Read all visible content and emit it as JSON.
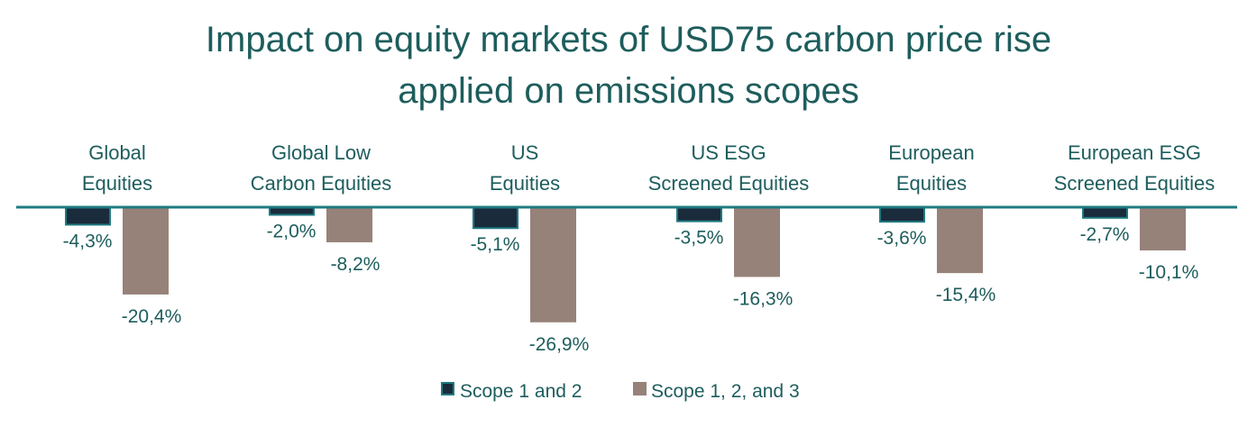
{
  "chart_data": {
    "type": "bar",
    "title_lines": [
      "Impact on equity markets of USD75 carbon price rise",
      "applied on emissions scopes"
    ],
    "categories": [
      [
        "Global",
        "Equities"
      ],
      [
        "Global Low",
        "Carbon Equities"
      ],
      [
        "US",
        "Equities"
      ],
      [
        "US ESG",
        "Screened Equities"
      ],
      [
        "European",
        "Equities"
      ],
      [
        "European ESG",
        "Screened Equities"
      ]
    ],
    "series": [
      {
        "name": "Scope 1 and 2",
        "values": [
          -4.3,
          -2.0,
          -5.1,
          -3.5,
          -3.6,
          -2.7
        ],
        "labels": [
          "-4,3%",
          "-2,0%",
          "-5,1%",
          "-3,5%",
          "-3,6%",
          "-2,7%"
        ],
        "color": "#1a2b3c",
        "stroke": "#1e7b80"
      },
      {
        "name": "Scope 1, 2, and 3",
        "values": [
          -20.4,
          -8.2,
          -26.9,
          -16.3,
          -15.4,
          -10.1
        ],
        "labels": [
          "-20,4%",
          "-8,2%",
          "-26,9%",
          "-16,3%",
          "-15,4%",
          "-10,1%"
        ],
        "color": "#968279",
        "stroke": "#968279"
      }
    ],
    "ylim": [
      -30,
      0
    ],
    "xlabel": "",
    "ylabel": "",
    "grid": false,
    "legend_position": "bottom",
    "colors": {
      "text": "#1e5d5d",
      "axis": "#1e7b80"
    }
  }
}
